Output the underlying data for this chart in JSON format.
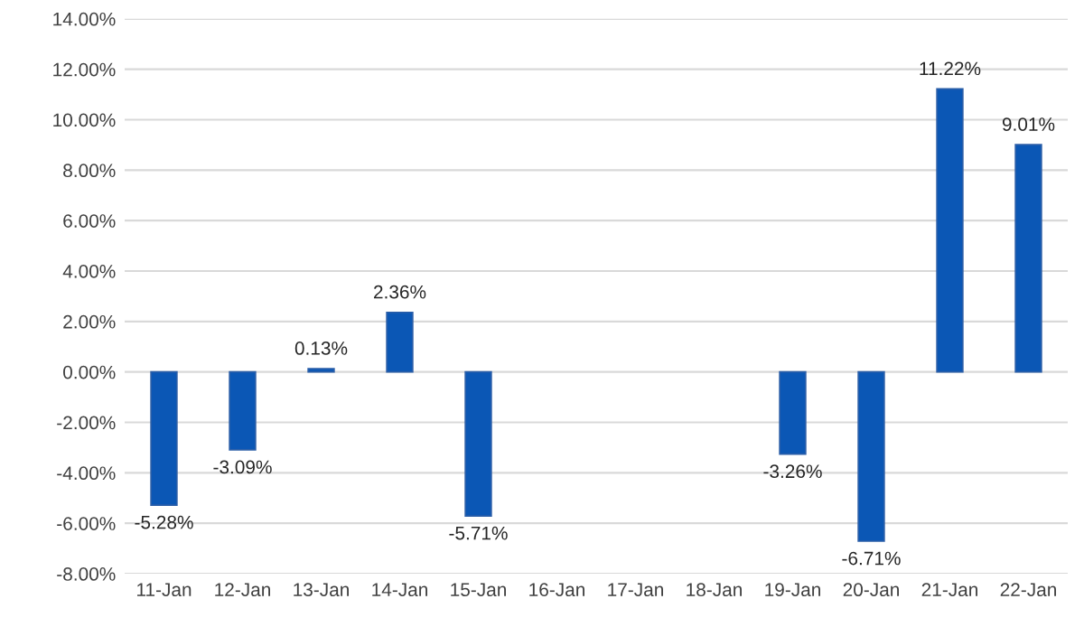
{
  "chart_data": {
    "type": "bar",
    "categories": [
      "11-Jan",
      "12-Jan",
      "13-Jan",
      "14-Jan",
      "15-Jan",
      "16-Jan",
      "17-Jan",
      "18-Jan",
      "19-Jan",
      "20-Jan",
      "21-Jan",
      "22-Jan"
    ],
    "values": [
      -5.28,
      -3.09,
      0.13,
      2.36,
      -5.71,
      null,
      null,
      null,
      -3.26,
      -6.71,
      11.22,
      9.01
    ],
    "value_labels": [
      "-5.28%",
      "-3.09%",
      "0.13%",
      "2.36%",
      "-5.71%",
      null,
      null,
      null,
      "-3.26%",
      "-6.71%",
      "11.22%",
      "9.01%"
    ],
    "color": "#0b57b5",
    "ylim": [
      -8,
      14
    ],
    "yticks": [
      {
        "value": -8,
        "label": "-8.00%"
      },
      {
        "value": -6,
        "label": "-6.00%"
      },
      {
        "value": -4,
        "label": "-4.00%"
      },
      {
        "value": -2,
        "label": "-2.00%"
      },
      {
        "value": 0,
        "label": "0.00%"
      },
      {
        "value": 2,
        "label": "2.00%"
      },
      {
        "value": 4,
        "label": "4.00%"
      },
      {
        "value": 6,
        "label": "6.00%"
      },
      {
        "value": 8,
        "label": "8.00%"
      },
      {
        "value": 10,
        "label": "10.00%"
      },
      {
        "value": 12,
        "label": "12.00%"
      },
      {
        "value": 14,
        "label": "14.00%"
      }
    ],
    "grid": "y"
  }
}
